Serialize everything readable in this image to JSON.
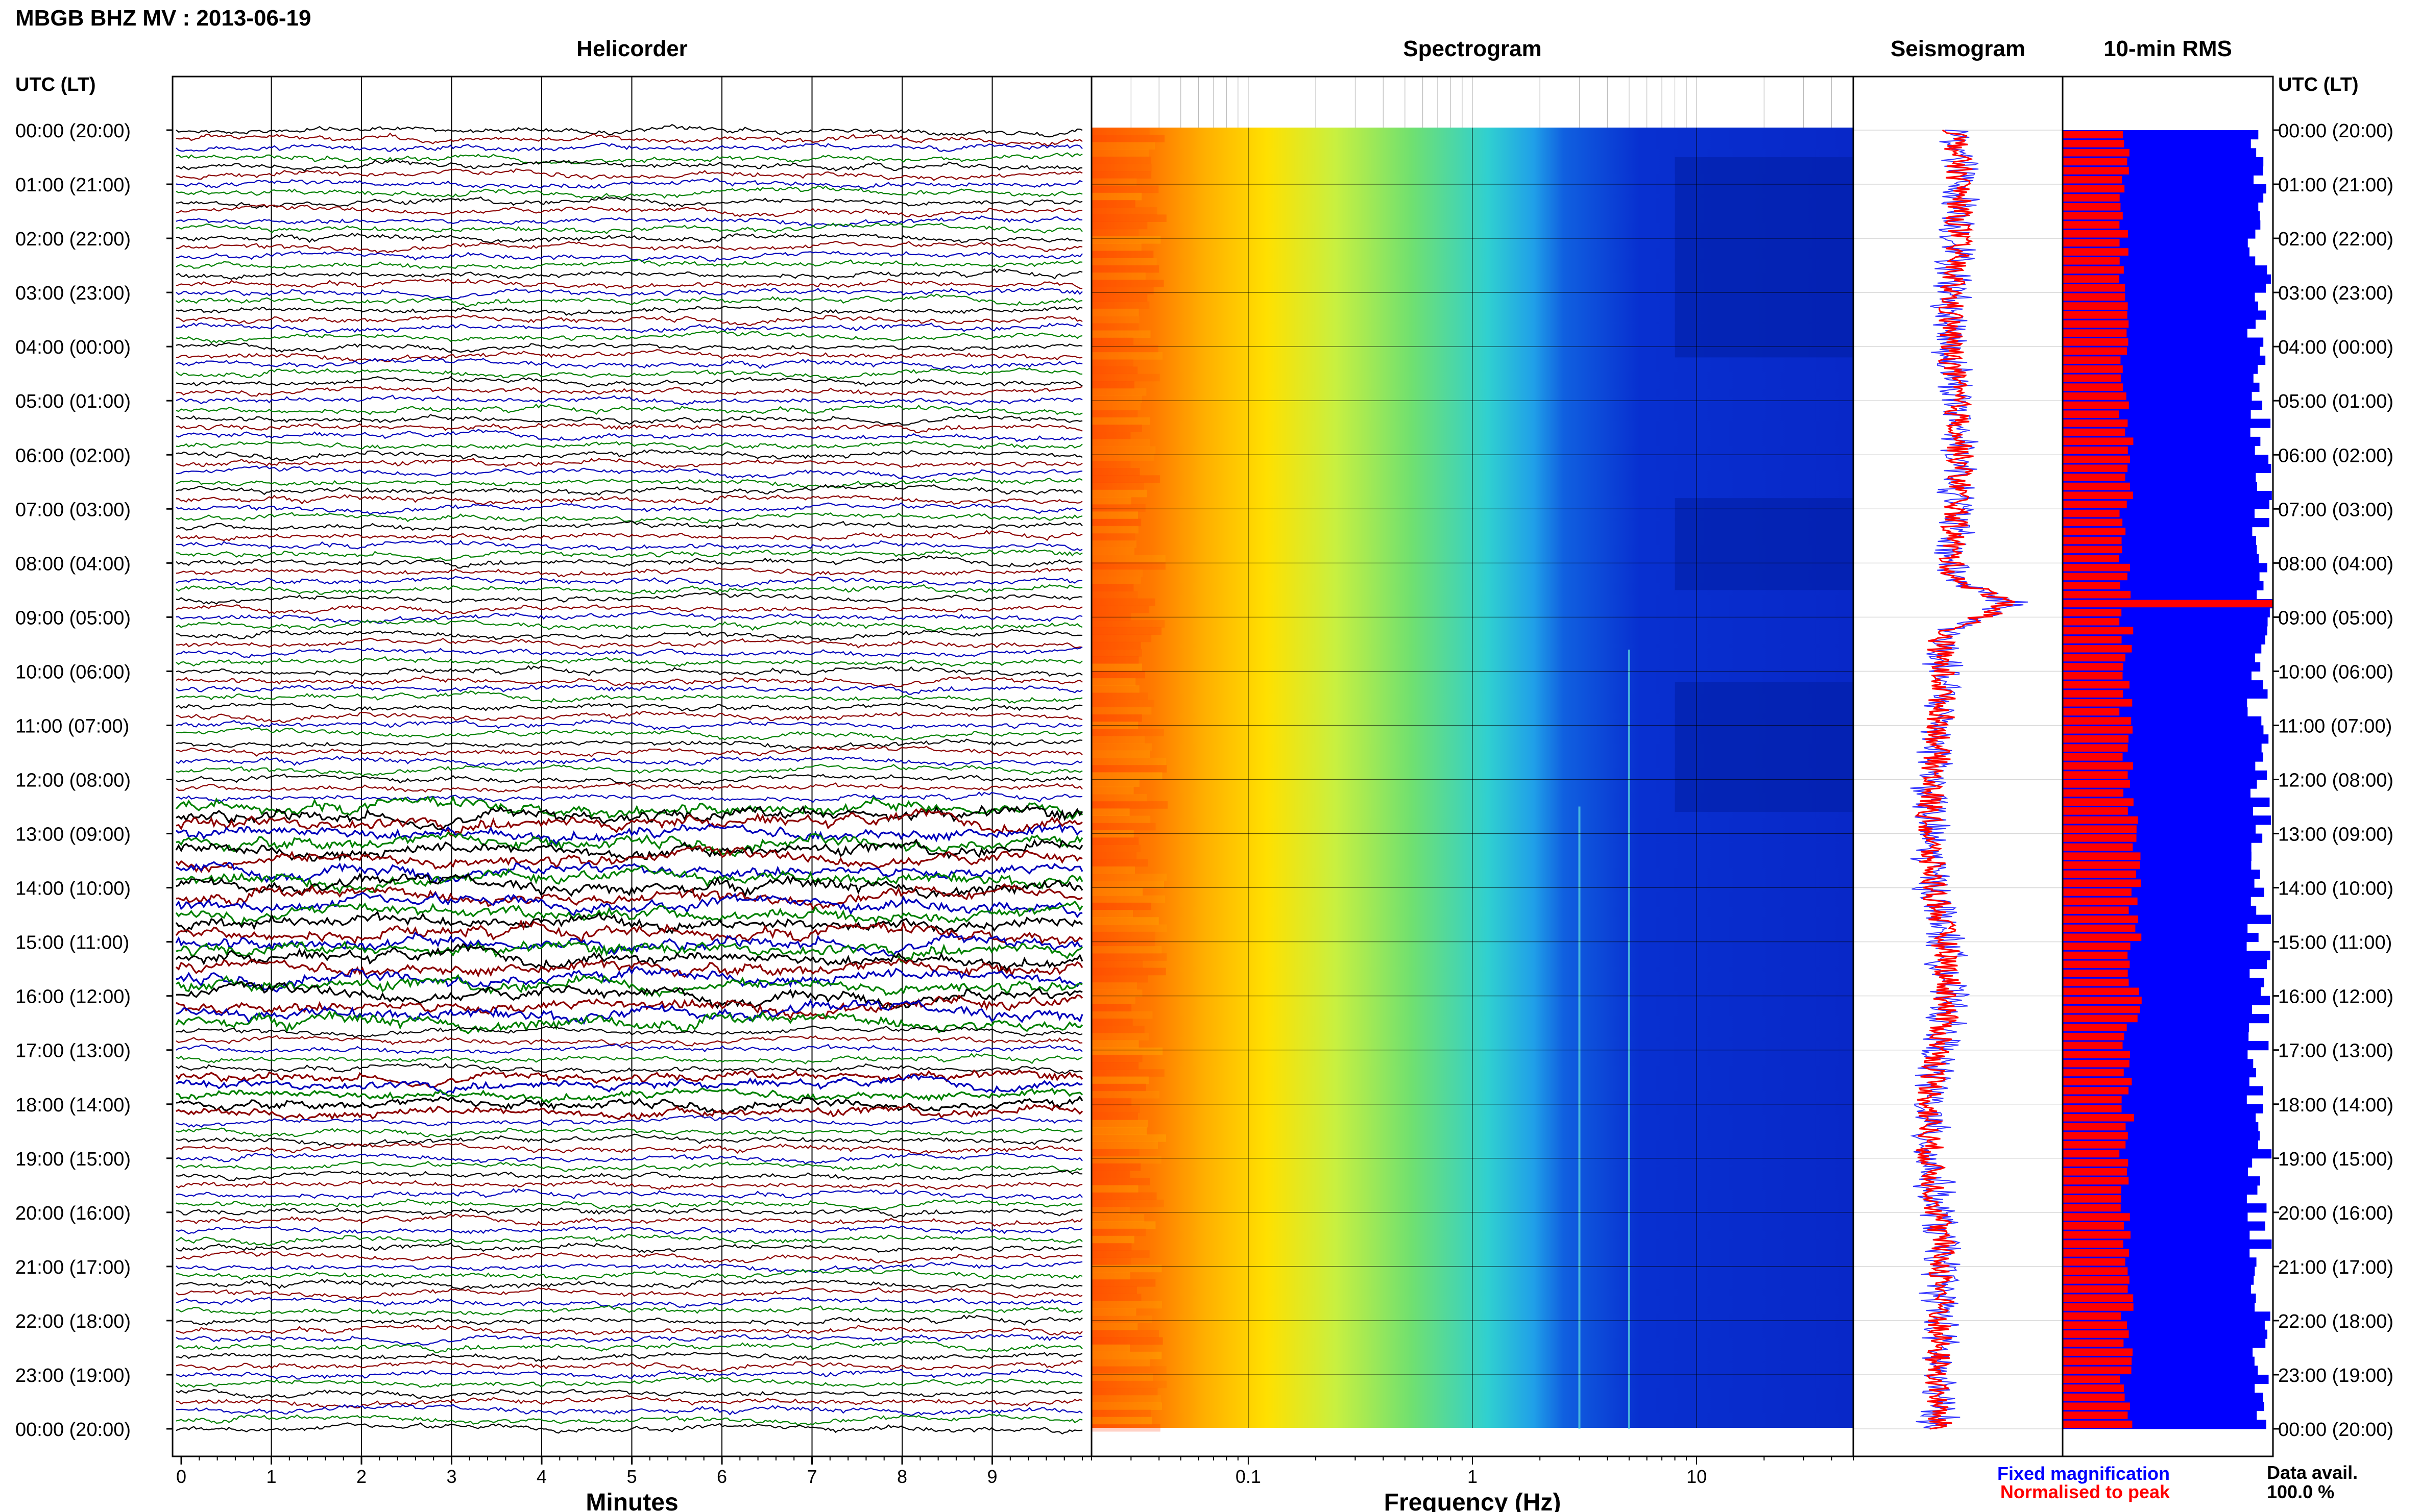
{
  "title": "MBGB BHZ MV : 2013-06-19",
  "colors": {
    "trace_cycle": [
      "#000000",
      "#8b0000",
      "#0000bb",
      "#008000"
    ],
    "fixed": "#0000ff",
    "normalised": "#ff0000",
    "rms_fixed": "#0000ff",
    "rms_norm": "#ff0000"
  },
  "panels": {
    "helicorder": "Helicorder",
    "spectrogram": "Spectrogram",
    "seismogram": "Seismogram",
    "rms": "10-min RMS"
  },
  "axes": {
    "left_header": "UTC (LT)",
    "right_header": "UTC (LT)",
    "minutes_label": "Minutes",
    "freq_label": "Frequency (Hz)",
    "minute_ticks": [
      "0",
      "1",
      "2",
      "3",
      "4",
      "5",
      "6",
      "7",
      "8",
      "9"
    ],
    "freq_ticks": [
      "0.1",
      "1",
      "10"
    ]
  },
  "time_labels": [
    "00:00 (20:00)",
    "01:00 (21:00)",
    "02:00 (22:00)",
    "03:00 (23:00)",
    "04:00 (00:00)",
    "05:00 (01:00)",
    "06:00 (02:00)",
    "07:00 (03:00)",
    "08:00 (04:00)",
    "09:00 (05:00)",
    "10:00 (06:00)",
    "11:00 (07:00)",
    "12:00 (08:00)",
    "13:00 (09:00)",
    "14:00 (10:00)",
    "15:00 (11:00)",
    "16:00 (12:00)",
    "17:00 (13:00)",
    "18:00 (14:00)",
    "19:00 (15:00)",
    "20:00 (16:00)",
    "21:00 (17:00)",
    "22:00 (18:00)",
    "23:00 (19:00)",
    "00:00 (20:00)"
  ],
  "legend": {
    "fixed": "Fixed magnification",
    "normalised": "Normalised to peak",
    "avail_label": "Data avail.",
    "avail_value": "100.0 %"
  },
  "chart_data": [
    {
      "type": "line",
      "title": "Helicorder",
      "xlabel": "Minutes",
      "xlim": [
        0,
        10
      ],
      "trace_count": 144,
      "trace_minutes": 10,
      "high_amplitude_hours": [
        {
          "start": 12.5,
          "end": 16.5,
          "level": 2.2
        },
        {
          "start": 17.5,
          "end": 18.3,
          "level": 1.6
        }
      ]
    },
    {
      "type": "heatmap",
      "title": "Spectrogram",
      "xlabel": "Frequency (Hz)",
      "xscale": "log",
      "xlim": [
        0.02,
        50
      ],
      "ylim_hours": [
        0,
        24
      ],
      "colormap": "jet",
      "note_lines_hz": [
        3.0,
        5.0
      ]
    },
    {
      "type": "line",
      "title": "Seismogram",
      "peak_hour": 8.8,
      "series": [
        {
          "name": "Fixed magnification"
        },
        {
          "name": "Normalised to peak"
        }
      ]
    },
    {
      "type": "bar",
      "title": "10-min RMS",
      "orientation": "horizontal",
      "bins": 144,
      "peak_bin": 52,
      "series": [
        {
          "name": "Fixed magnification"
        },
        {
          "name": "Normalised to peak"
        }
      ]
    }
  ]
}
